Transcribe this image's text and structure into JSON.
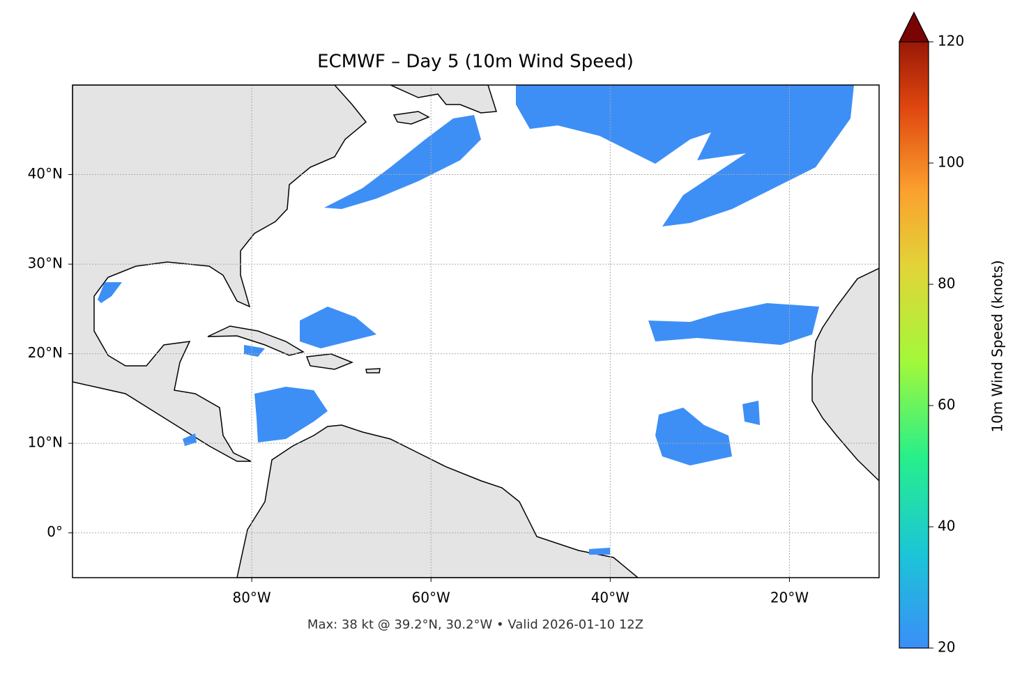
{
  "title": "ECMWF – Day 5 (10m Wind Speed)",
  "footer": "Max: 38 kt @ 39.2°N, 30.2°W • Valid 2026-01-10 12Z",
  "map": {
    "xlim": [
      -100,
      -10
    ],
    "ylim": [
      -5,
      50
    ],
    "xticks": [
      {
        "value": -80,
        "label": "80°W"
      },
      {
        "value": -60,
        "label": "60°W"
      },
      {
        "value": -40,
        "label": "40°W"
      },
      {
        "value": -20,
        "label": "20°W"
      }
    ],
    "yticks": [
      {
        "value": 0,
        "label": "0°"
      },
      {
        "value": 10,
        "label": "10°N"
      },
      {
        "value": 20,
        "label": "20°N"
      },
      {
        "value": 30,
        "label": "30°N"
      },
      {
        "value": 40,
        "label": "40°N"
      }
    ],
    "grid": true
  },
  "colorbar": {
    "label": "10m Wind Speed (knots)",
    "lim": [
      20,
      120
    ],
    "ticks": [
      20,
      40,
      60,
      80,
      100,
      120
    ]
  }
}
